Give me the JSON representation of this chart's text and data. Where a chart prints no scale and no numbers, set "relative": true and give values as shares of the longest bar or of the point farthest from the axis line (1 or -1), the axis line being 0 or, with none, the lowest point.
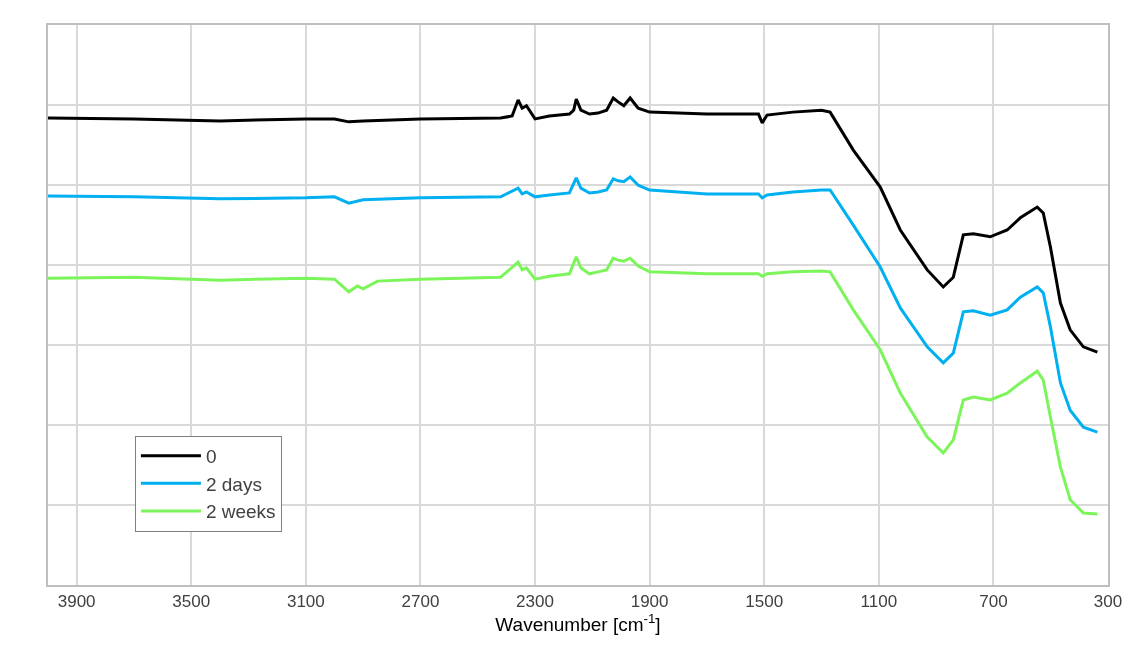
{
  "chart_data": {
    "type": "line",
    "relative": true,
    "xlabel": "Wavenumber [cm$^{-1}$]",
    "xlim": [
      4000,
      300
    ],
    "xticks": [
      3900,
      3500,
      3100,
      2700,
      2300,
      1900,
      1500,
      1100,
      700,
      300
    ],
    "grid": true,
    "legend": "bottom left",
    "marker": "none",
    "line_style": "solid",
    "series": [
      {
        "name": "0",
        "color": "#000000",
        "x": [
          4000,
          3700,
          3400,
          3100,
          3000,
          2950,
          2900,
          2700,
          2420,
          2380,
          2359,
          2345,
          2330,
          2300,
          2250,
          2180,
          2165,
          2156,
          2140,
          2110,
          2080,
          2050,
          2027,
          2010,
          1990,
          1968,
          1940,
          1900,
          1800,
          1700,
          1600,
          1520,
          1507,
          1490,
          1400,
          1300,
          1270,
          1189,
          1095,
          1025,
          931,
          875,
          840,
          805,
          770,
          711,
          652,
          606,
          547,
          526,
          501,
          466,
          432,
          386,
          337
        ],
        "values": [
          0.959,
          0.957,
          0.953,
          0.957,
          0.957,
          0.951,
          0.953,
          0.957,
          0.959,
          0.963,
          0.996,
          0.979,
          0.984,
          0.957,
          0.963,
          0.967,
          0.975,
          0.998,
          0.975,
          0.967,
          0.969,
          0.975,
          1.0,
          0.992,
          0.984,
          1.0,
          0.979,
          0.971,
          0.969,
          0.967,
          0.967,
          0.967,
          0.949,
          0.965,
          0.971,
          0.975,
          0.971,
          0.893,
          0.817,
          0.729,
          0.647,
          0.612,
          0.632,
          0.719,
          0.721,
          0.715,
          0.729,
          0.754,
          0.776,
          0.764,
          0.694,
          0.579,
          0.524,
          0.489,
          0.478
        ]
      },
      {
        "name": "2 days",
        "color": "#00b0f0",
        "x": [
          4000,
          3700,
          3400,
          3100,
          3000,
          2950,
          2900,
          2700,
          2420,
          2359,
          2345,
          2330,
          2300,
          2250,
          2180,
          2156,
          2140,
          2110,
          2080,
          2050,
          2027,
          2010,
          1990,
          1968,
          1940,
          1900,
          1800,
          1700,
          1600,
          1520,
          1507,
          1490,
          1400,
          1300,
          1270,
          1189,
          1095,
          1025,
          931,
          875,
          840,
          805,
          770,
          711,
          652,
          606,
          547,
          526,
          501,
          466,
          432,
          386,
          337
        ],
        "values": [
          0.799,
          0.797,
          0.793,
          0.795,
          0.797,
          0.784,
          0.791,
          0.795,
          0.797,
          0.815,
          0.803,
          0.807,
          0.797,
          0.801,
          0.805,
          0.836,
          0.815,
          0.805,
          0.807,
          0.811,
          0.834,
          0.83,
          0.828,
          0.838,
          0.821,
          0.811,
          0.807,
          0.803,
          0.803,
          0.803,
          0.795,
          0.801,
          0.807,
          0.811,
          0.811,
          0.739,
          0.653,
          0.569,
          0.489,
          0.456,
          0.476,
          0.561,
          0.563,
          0.554,
          0.565,
          0.591,
          0.612,
          0.6,
          0.53,
          0.415,
          0.359,
          0.324,
          0.314
        ]
      },
      {
        "name": "2 weeks",
        "color": "#7cf55a",
        "x": [
          4000,
          3700,
          3400,
          3100,
          3000,
          2950,
          2920,
          2900,
          2850,
          2700,
          2420,
          2359,
          2345,
          2330,
          2300,
          2250,
          2180,
          2156,
          2140,
          2110,
          2080,
          2050,
          2027,
          2010,
          1990,
          1968,
          1940,
          1900,
          1800,
          1700,
          1600,
          1520,
          1507,
          1490,
          1400,
          1300,
          1270,
          1189,
          1095,
          1025,
          931,
          875,
          840,
          805,
          770,
          711,
          652,
          606,
          547,
          526,
          501,
          466,
          432,
          386,
          337
        ],
        "values": [
          0.63,
          0.632,
          0.626,
          0.63,
          0.628,
          0.602,
          0.614,
          0.608,
          0.624,
          0.628,
          0.632,
          0.663,
          0.647,
          0.651,
          0.628,
          0.634,
          0.639,
          0.674,
          0.651,
          0.639,
          0.643,
          0.647,
          0.671,
          0.667,
          0.665,
          0.671,
          0.655,
          0.643,
          0.641,
          0.639,
          0.639,
          0.639,
          0.634,
          0.639,
          0.643,
          0.645,
          0.643,
          0.565,
          0.483,
          0.394,
          0.304,
          0.271,
          0.298,
          0.38,
          0.386,
          0.38,
          0.394,
          0.415,
          0.439,
          0.421,
          0.345,
          0.242,
          0.175,
          0.148,
          0.146
        ]
      }
    ]
  }
}
